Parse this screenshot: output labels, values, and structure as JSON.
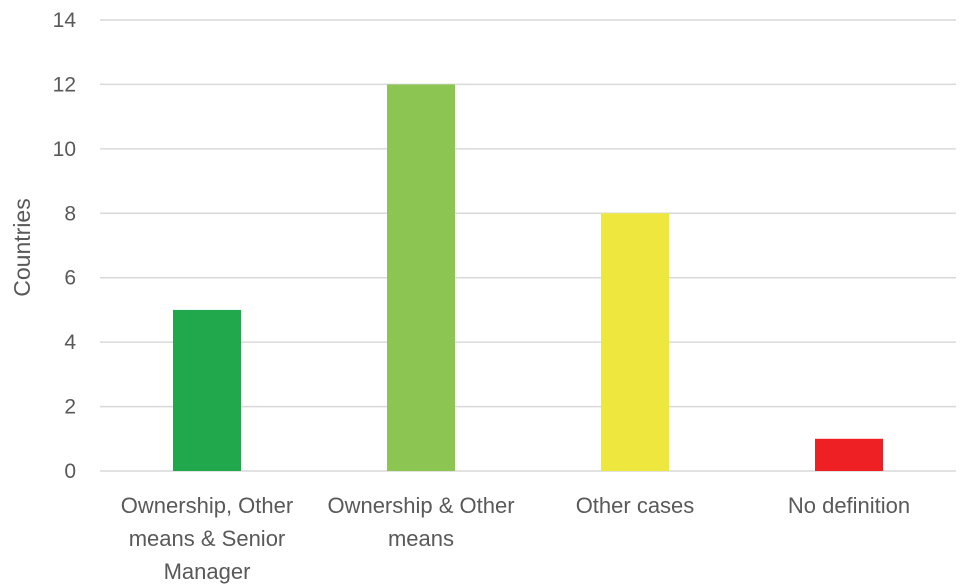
{
  "chart_data": {
    "type": "bar",
    "title": "",
    "xlabel": "",
    "ylabel": "Countries",
    "ylim": [
      0,
      14
    ],
    "yticks": [
      0,
      2,
      4,
      6,
      8,
      10,
      12,
      14
    ],
    "grid": true,
    "legend": "none",
    "categories": [
      [
        "Ownership, Other",
        "means & Senior",
        "Manager"
      ],
      [
        "Ownership & Other",
        "means"
      ],
      [
        "Other cases"
      ],
      [
        "No definition"
      ]
    ],
    "values": [
      5,
      12,
      8,
      1
    ],
    "colors": [
      "#21a84c",
      "#8cc552",
      "#eee83e",
      "#ee2024"
    ]
  }
}
